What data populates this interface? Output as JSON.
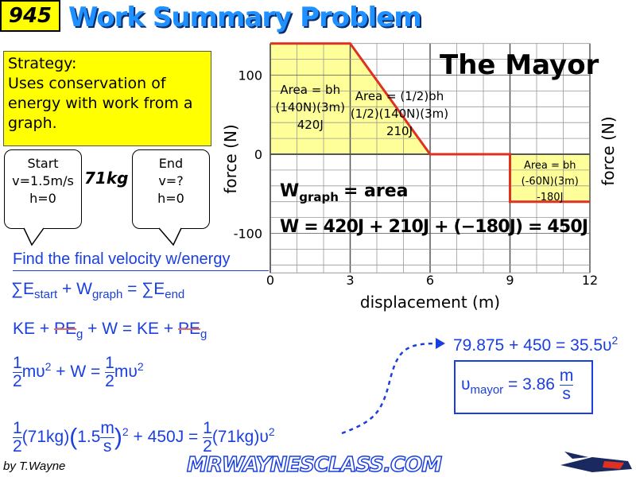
{
  "header": {
    "number": "945",
    "title": "Work Summary Problem"
  },
  "strategy": {
    "lines": [
      "Strategy:",
      "Uses conservation of",
      "energy with work from a",
      "graph."
    ]
  },
  "start_bubble": [
    "Start",
    "v=1.5m/s",
    "h=0"
  ],
  "end_bubble": [
    "End",
    "v=?",
    "h=0"
  ],
  "mass_label": "71kg",
  "graph": {
    "character": "The Mayor",
    "xlabel": "displacement (m)",
    "ylabel_left": "force (N)",
    "ylabel_right": "force (N)",
    "x_ticks": [
      "0",
      "3",
      "6",
      "9",
      "12"
    ],
    "y_ticks": [
      "100",
      "0",
      "-100"
    ],
    "xlim": [
      0,
      12
    ],
    "ylim": [
      -150,
      140
    ],
    "line_points": [
      [
        0,
        140
      ],
      [
        3,
        140
      ],
      [
        6,
        0
      ],
      [
        9,
        0
      ],
      [
        9,
        -60
      ],
      [
        12,
        -60
      ]
    ],
    "line_color": "#e03020",
    "fill_color": "#ffff99",
    "areas": [
      [
        "Area = bh",
        "(140N)(3m)",
        "420J"
      ],
      [
        "Area = (1/2)bh",
        "(1/2)(140N)(3m)",
        "210J"
      ],
      [
        "Area = bh",
        "(-60N)(3m)",
        "-180J"
      ]
    ],
    "wgraph_eq": {
      "w": "W",
      "sub": "graph",
      "rest": "= area"
    },
    "w_sum_eq": "W = 420J + 210J + (−180J) = 450J"
  },
  "equations": {
    "prompt": "Find the final velocity w/energy",
    "eq1": {
      "a": "∑E",
      "a_sub": "start",
      "b": "+ W",
      "b_sub": "graph",
      "c": "= ",
      "d": "∑E",
      "d_sub": "end"
    },
    "eq2": {
      "a": "KE + ",
      "pe": "PE",
      "g": "g",
      "b": " + W = KE + "
    },
    "eq3": {
      "one": "1",
      "two": "2",
      "a": "mυ",
      "sq": "2",
      "b": " + W = ",
      "c": "mυ"
    },
    "eq4": {
      "a": "(71kg)",
      "b": "1.5",
      "m": "m",
      "s": "s",
      "c": " + 450J = ",
      "d": "(71kg)υ"
    },
    "eq5": "79.875 + 450 = 35.5υ",
    "answer": {
      "v": "υ",
      "sub": "mayor",
      "eq": " = 3.86",
      "m": "m",
      "s": "s"
    }
  },
  "footer": {
    "byline": "by T.Wayne",
    "url": "MRWAYNESCLASS.COM"
  }
}
